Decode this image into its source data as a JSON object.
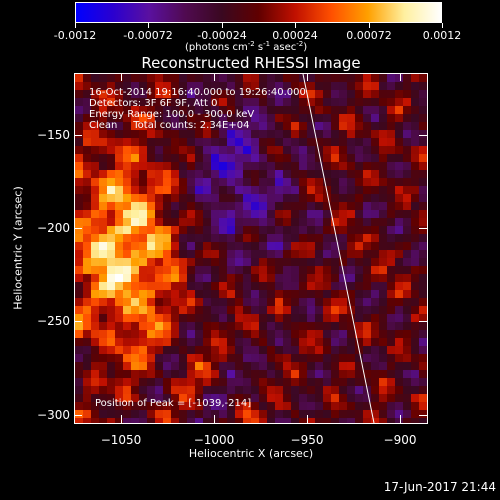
{
  "colorbar": {
    "stops": [
      "#0000ff",
      "#2a00d0",
      "#5a10a0",
      "#500a50",
      "#3a0820",
      "#600000",
      "#c01000",
      "#ff5000",
      "#ffa000",
      "#fff0a0",
      "#ffffff"
    ],
    "tick_labels": [
      "-0.0012",
      "-0.00072",
      "-0.00024",
      "0.00024",
      "0.00072",
      "0.0012"
    ],
    "units_text": "(photons cm",
    "units_exp1": "-2",
    "units_mid1": " s",
    "units_exp2": "-1",
    "units_mid2": " asec",
    "units_exp3": "-2",
    "units_close": ")"
  },
  "plot": {
    "title": "Reconstructed RHESSI Image",
    "xlabel": "Heliocentric X (arcsec)",
    "ylabel": "Heliocentric Y (arcsec)",
    "x_ticks": [
      "-1050",
      "-1000",
      "-950",
      "-900"
    ],
    "y_ticks": [
      "-150",
      "-200",
      "-250",
      "-300"
    ],
    "xlim": [
      -1075,
      -885
    ],
    "ylim": [
      -305,
      -117
    ],
    "info_line1": "16-Oct-2014 19:16:40.000 to 19:26:40.000",
    "info_line2": "Detectors: 3F 6F 9F, Att 0",
    "info_line3": "Energy Range: 100.0 - 300.0 keV",
    "info_line4": "Clean     Total counts: 2.34E+04",
    "peak_text": "Position of Peak = [-1039,-214]",
    "limb_color": "#ffffff"
  },
  "footer": {
    "timestamp": "17-Jun-2017 21:44"
  }
}
